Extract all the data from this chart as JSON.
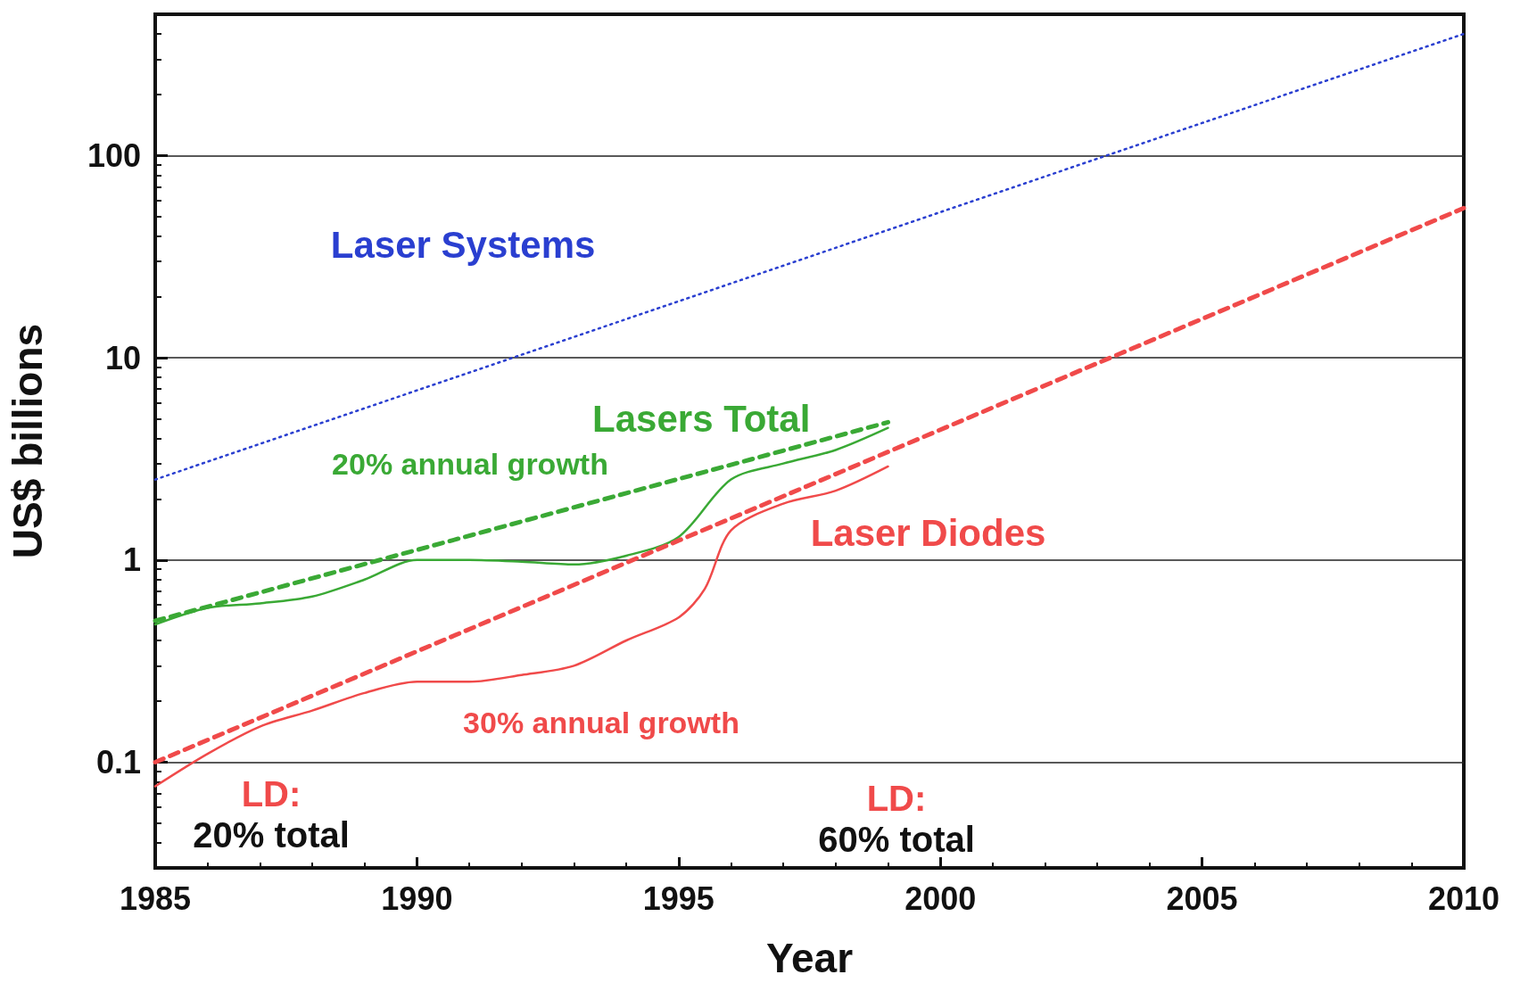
{
  "chart_data": {
    "type": "line",
    "xlabel": "Year",
    "ylabel": "US$ billions",
    "xlim": [
      1985,
      2010
    ],
    "xticks": [
      1985,
      1990,
      1995,
      2000,
      2005,
      2010
    ],
    "ylim": [
      0.03,
      500
    ],
    "yticks": [
      0.1,
      1,
      10,
      100
    ],
    "log": "y",
    "grid": "y",
    "legend": false,
    "marker": "none",
    "series": [
      {
        "name": "Laser Systems",
        "color": "#2a3fd0",
        "line_style": "dotted",
        "x": [
          1985,
          2010
        ],
        "values": [
          2.5,
          400
        ]
      },
      {
        "name": "Lasers Total",
        "color": "#3aa935",
        "line_style": "solid",
        "x": [
          1985,
          1986,
          1987,
          1988,
          1989,
          1990,
          1991,
          1992,
          1993,
          1994,
          1995,
          1996,
          1997,
          1998,
          1999
        ],
        "values": [
          0.48,
          0.58,
          0.61,
          0.66,
          0.8,
          1.0,
          1.0,
          0.98,
          0.95,
          1.05,
          1.3,
          2.5,
          3.0,
          3.5,
          4.5
        ]
      },
      {
        "color": "#3aa935",
        "line_style": "dashed",
        "x": [
          1985,
          1999
        ],
        "values": [
          0.5,
          4.8
        ]
      },
      {
        "name": "Laser Diodes",
        "color": "#f04a4a",
        "line_style": "solid",
        "x": [
          1985,
          1986,
          1987,
          1988,
          1989,
          1990,
          1991,
          1992,
          1993,
          1994,
          1995,
          1995.5,
          1996,
          1997,
          1998,
          1999
        ],
        "values": [
          0.076,
          0.11,
          0.15,
          0.18,
          0.22,
          0.25,
          0.25,
          0.27,
          0.3,
          0.4,
          0.52,
          0.72,
          1.4,
          1.9,
          2.2,
          2.9
        ]
      },
      {
        "color": "#f04a4a",
        "line_style": "dashed",
        "x": [
          1985,
          2010
        ],
        "values": [
          0.1,
          55
        ]
      }
    ],
    "annotations": [
      "20% annual growth",
      "30% annual growth",
      "LD:\n20% total",
      "LD:\n60% total"
    ]
  }
}
